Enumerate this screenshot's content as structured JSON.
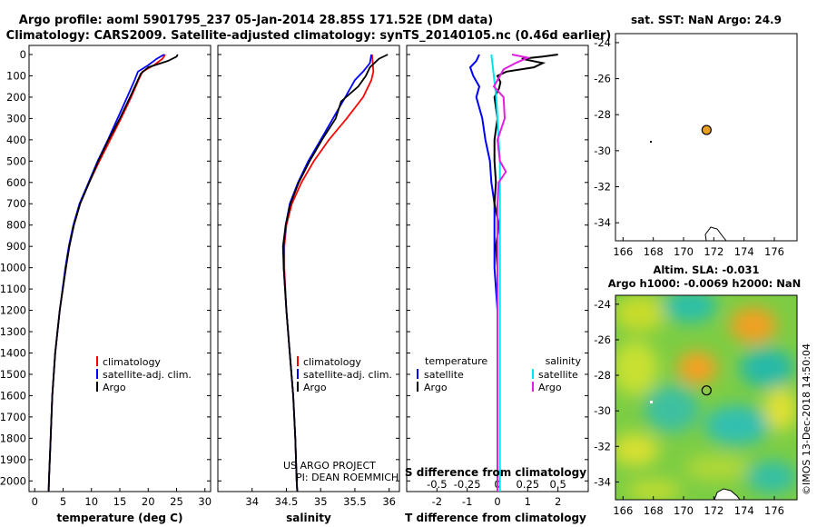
{
  "figure": {
    "title_line1": "Argo profile: aoml 5901795_237 05-Jan-2014 28.85S 171.52E (DM data)",
    "title_line2": "Climatology: CARS2009. Satellite-adjusted climatology: synTS_20140105.nc (0.46d earlier)",
    "credit_line1": "US ARGO PROJECT",
    "credit_line2": "PI: DEAN ROEMMICH",
    "timestamp": "©IMOS 13-Dec-2018 14:50:04",
    "colors": {
      "climatology": "#ff0000",
      "satellite": "#0000ff",
      "argo": "#000000",
      "sal_sat": "#00e5ee",
      "sal_argo": "#e020e0",
      "marker": "#e8a020"
    }
  },
  "chart_data": [
    {
      "type": "line",
      "id": "temperature",
      "xlabel": "temperature (deg C)",
      "xlim": [
        -1,
        31
      ],
      "xticks": [
        "0",
        "5",
        "10",
        "15",
        "20",
        "25",
        "30"
      ],
      "ylim": [
        2050,
        0
      ],
      "yticks": [
        "0",
        "100",
        "200",
        "300",
        "400",
        "500",
        "600",
        "700",
        "800",
        "900",
        "1000",
        "1100",
        "1200",
        "1300",
        "1400",
        "1500",
        "1600",
        "1700",
        "1800",
        "1900",
        "2000"
      ],
      "legend": [
        "climatology",
        "satellite-adj. clim.",
        "Argo"
      ],
      "series": [
        {
          "name": "climatology",
          "depth": [
            0,
            20,
            50,
            80,
            120,
            200,
            300,
            400,
            500,
            600,
            700,
            800,
            900,
            1000,
            1200,
            1400,
            1600,
            1800,
            2000,
            2050
          ],
          "values": [
            23.0,
            22.5,
            21.0,
            19.0,
            18.3,
            17.0,
            15.2,
            13.3,
            11.4,
            9.6,
            8.0,
            6.9,
            6.1,
            5.5,
            4.4,
            3.6,
            3.1,
            2.8,
            2.5,
            2.45
          ]
        },
        {
          "name": "satellite-adj. clim.",
          "depth": [
            0,
            20,
            50,
            80,
            120,
            200,
            300,
            400,
            500,
            600,
            700,
            800,
            900,
            1000,
            1200,
            1400,
            1600,
            1800,
            2000,
            2050
          ],
          "values": [
            22.8,
            21.5,
            20.0,
            18.2,
            17.6,
            16.3,
            14.6,
            12.9,
            11.1,
            9.5,
            7.9,
            6.8,
            6.0,
            5.4,
            4.4,
            3.6,
            3.1,
            2.8,
            2.5,
            2.45
          ]
        },
        {
          "name": "Argo",
          "depth": [
            0,
            10,
            30,
            60,
            90,
            130,
            200,
            300,
            400,
            500,
            600,
            700,
            800,
            900,
            1000,
            1200,
            1400,
            1600,
            1800,
            2000,
            2050
          ],
          "values": [
            25.2,
            25.0,
            23.5,
            20.0,
            18.7,
            18.0,
            16.8,
            15.0,
            13.0,
            11.2,
            9.6,
            8.0,
            6.9,
            6.1,
            5.5,
            4.4,
            3.6,
            3.1,
            2.8,
            2.5,
            2.45
          ]
        }
      ]
    },
    {
      "type": "line",
      "id": "salinity",
      "xlabel": "salinity",
      "xlim": [
        33.5,
        36.15
      ],
      "xticks": [
        "34",
        "34.5",
        "35",
        "35.5",
        "36"
      ],
      "ylim": [
        2050,
        0
      ],
      "legend": [
        "climatology",
        "satellite-adj. clim.",
        "Argo"
      ],
      "series": [
        {
          "name": "climatology",
          "depth": [
            0,
            40,
            80,
            120,
            200,
            300,
            400,
            500,
            600,
            700,
            800,
            900,
            1000,
            1200,
            1400,
            1600,
            1800,
            2000,
            2050
          ],
          "values": [
            35.75,
            35.76,
            35.77,
            35.74,
            35.62,
            35.38,
            35.12,
            34.9,
            34.72,
            34.58,
            34.5,
            34.47,
            34.47,
            34.5,
            34.55,
            34.6,
            34.63,
            34.65,
            34.66
          ]
        },
        {
          "name": "satellite-adj. clim.",
          "depth": [
            0,
            40,
            80,
            120,
            200,
            300,
            400,
            500,
            600,
            700,
            800,
            900,
            1000,
            1200,
            1400,
            1600,
            1800,
            2000,
            2050
          ],
          "values": [
            35.74,
            35.72,
            35.62,
            35.5,
            35.36,
            35.18,
            35.0,
            34.82,
            34.67,
            34.55,
            34.49,
            34.46,
            34.46,
            34.5,
            34.55,
            34.6,
            34.63,
            34.65,
            34.66
          ]
        },
        {
          "name": "Argo",
          "depth": [
            0,
            20,
            60,
            100,
            150,
            220,
            300,
            400,
            500,
            600,
            700,
            800,
            900,
            1000,
            1200,
            1400,
            1600,
            1800,
            2000,
            2050
          ],
          "values": [
            35.98,
            35.85,
            35.72,
            35.66,
            35.55,
            35.3,
            35.22,
            35.02,
            34.84,
            34.68,
            34.56,
            34.49,
            34.45,
            34.46,
            34.5,
            34.55,
            34.6,
            34.63,
            34.65,
            34.66
          ]
        }
      ]
    },
    {
      "type": "line",
      "id": "differences",
      "xlabel": "T difference from climatology",
      "xlabel_top": "S difference from climatology",
      "xlim": [
        -3,
        3
      ],
      "xticks": [
        "-2",
        "-1",
        "0",
        "1",
        "2"
      ],
      "xticks_top": [
        "-0.5",
        "-0.25",
        "0",
        "0.25",
        "0.5"
      ],
      "ylim": [
        2050,
        0
      ],
      "legend_title_left": "temperature",
      "legend_title_right": "salinity",
      "legend_left": [
        "satellite",
        "Argo"
      ],
      "legend_right": [
        "satellite",
        "Argo"
      ],
      "series": [
        {
          "name": "T satellite",
          "depth": [
            0,
            30,
            60,
            100,
            150,
            200,
            300,
            400,
            500,
            600,
            700,
            800,
            900,
            1000,
            1200,
            1400,
            1600,
            1800,
            2000,
            2050
          ],
          "values": [
            -0.6,
            -0.7,
            -0.9,
            -0.8,
            -0.6,
            -0.7,
            -0.5,
            -0.4,
            -0.25,
            -0.2,
            -0.1,
            -0.1,
            -0.1,
            -0.1,
            0.0,
            0.0,
            0.0,
            0.0,
            0.0,
            0.0
          ]
        },
        {
          "name": "T Argo",
          "depth": [
            0,
            10,
            20,
            40,
            60,
            80,
            100,
            130,
            160,
            200,
            300,
            400,
            500,
            600,
            700,
            800,
            900,
            1000,
            1200,
            1400,
            1600,
            1800,
            2000,
            2050
          ],
          "values": [
            2.0,
            1.5,
            0.8,
            1.5,
            1.2,
            0.3,
            0.0,
            0.1,
            0.05,
            -0.1,
            0.0,
            -0.1,
            -0.1,
            -0.05,
            -0.1,
            0.05,
            -0.05,
            0.0,
            0.0,
            0.0,
            0.0,
            0.0,
            0.0,
            0.0
          ]
        },
        {
          "name": "S satellite",
          "depth": [
            0,
            100,
            200,
            300,
            400,
            500,
            600,
            700,
            800,
            1000,
            1200,
            1400,
            1600,
            1800,
            2000,
            2050
          ],
          "values": [
            -0.05,
            -0.03,
            -0.01,
            0.0,
            0.01,
            0.02,
            0.02,
            0.02,
            0.02,
            0.02,
            0.02,
            0.02,
            0.02,
            0.02,
            0.02,
            0.02
          ]
        },
        {
          "name": "S Argo",
          "depth": [
            0,
            15,
            40,
            70,
            100,
            150,
            200,
            300,
            400,
            500,
            550,
            600,
            700,
            800,
            900,
            1000,
            1200,
            1400,
            1600,
            1800,
            2000,
            2050
          ],
          "values": [
            0.12,
            0.25,
            0.15,
            0.05,
            0.02,
            -0.03,
            0.05,
            0.06,
            0.0,
            0.02,
            0.07,
            0.01,
            0.0,
            0.0,
            0.0,
            0.0,
            0.0,
            0.0,
            0.0,
            0.0,
            0.0,
            0.0
          ]
        }
      ]
    },
    {
      "type": "scatter",
      "id": "sst_map",
      "title": "sat. SST: NaN Argo: 24.9",
      "xlim": [
        165.5,
        177.5
      ],
      "ylim": [
        -35,
        -23.5
      ],
      "xticks": [
        "166",
        "168",
        "170",
        "172",
        "174",
        "176"
      ],
      "yticks": [
        "-24",
        "-26",
        "-28",
        "-30",
        "-32",
        "-34"
      ],
      "points": [
        {
          "lon": 171.52,
          "lat": -28.85
        }
      ]
    },
    {
      "type": "heatmap",
      "id": "sla_map",
      "title_line1": "Altim. SLA: -0.031",
      "title_line2": "Argo h1000: -0.0069 h2000: NaN",
      "xlim": [
        165.5,
        177.5
      ],
      "ylim": [
        -35,
        -23.5
      ],
      "xticks": [
        "166",
        "168",
        "170",
        "172",
        "174",
        "176"
      ],
      "yticks": [
        "-24",
        "-26",
        "-28",
        "-30",
        "-32",
        "-34"
      ],
      "points": [
        {
          "lon": 171.52,
          "lat": -28.85
        }
      ]
    }
  ]
}
